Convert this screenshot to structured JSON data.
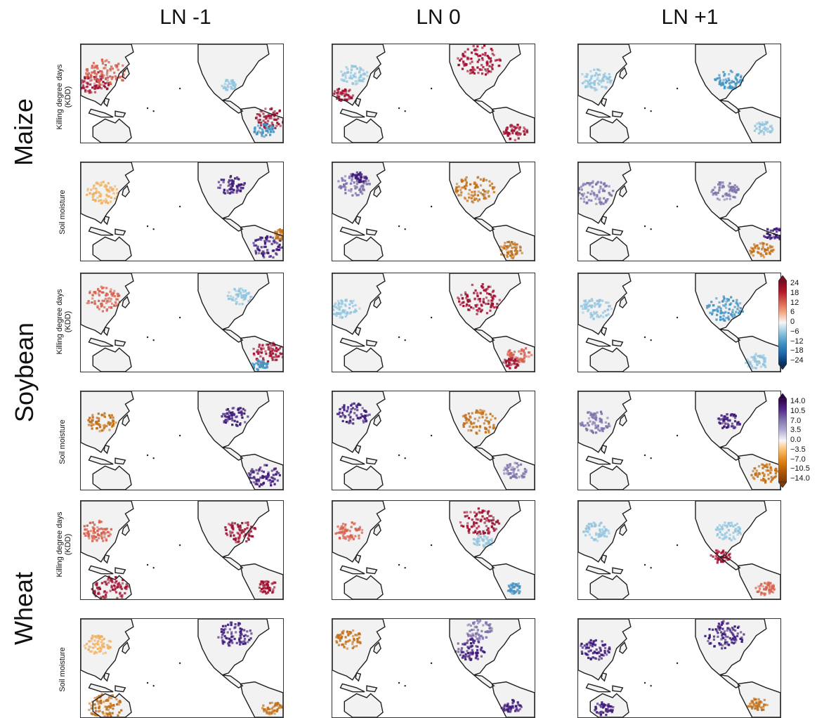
{
  "columns": [
    "LN -1",
    "LN 0",
    "LN +1"
  ],
  "crops": [
    {
      "name": "Maize"
    },
    {
      "name": "Soybean"
    },
    {
      "name": "Wheat"
    }
  ],
  "variables": {
    "kdd_line1": "Killing degree days",
    "kdd_line2": "(KDD)",
    "sm": "Soil moisture"
  },
  "colorbars": {
    "kdd": {
      "ticks": [
        "24",
        "18",
        "12",
        "6",
        "0",
        "−6",
        "−12",
        "−18",
        "−24"
      ],
      "colors": [
        "#7f0a1f",
        "#b2182b",
        "#d6604d",
        "#f4a582",
        "#f7f7f7",
        "#92c5de",
        "#4393c3",
        "#2166ac",
        "#053061"
      ]
    },
    "sm": {
      "ticks": [
        "14.0",
        "10.5",
        "7.0",
        "3.5",
        "0.0",
        "−3.5",
        "−7.0",
        "−10.5",
        "−14.0"
      ],
      "colors": [
        "#2d004b",
        "#542788",
        "#8073ac",
        "#b2abd2",
        "#f7f7f7",
        "#fdb863",
        "#e08214",
        "#b35806",
        "#7f3b08"
      ]
    }
  },
  "anomaly_colors": {
    "kdd_pos": "#9e1030",
    "kdd_pos_light": "#d6604d",
    "kdd_neg": "#4393c3",
    "kdd_neg_light": "#92c5de",
    "sm_pos": "#3f1a7a",
    "sm_pos_light": "#8073ac",
    "sm_neg": "#c2711a",
    "sm_neg_light": "#f0b060",
    "land": "#f2f2f2",
    "coast": "#222222"
  }
}
